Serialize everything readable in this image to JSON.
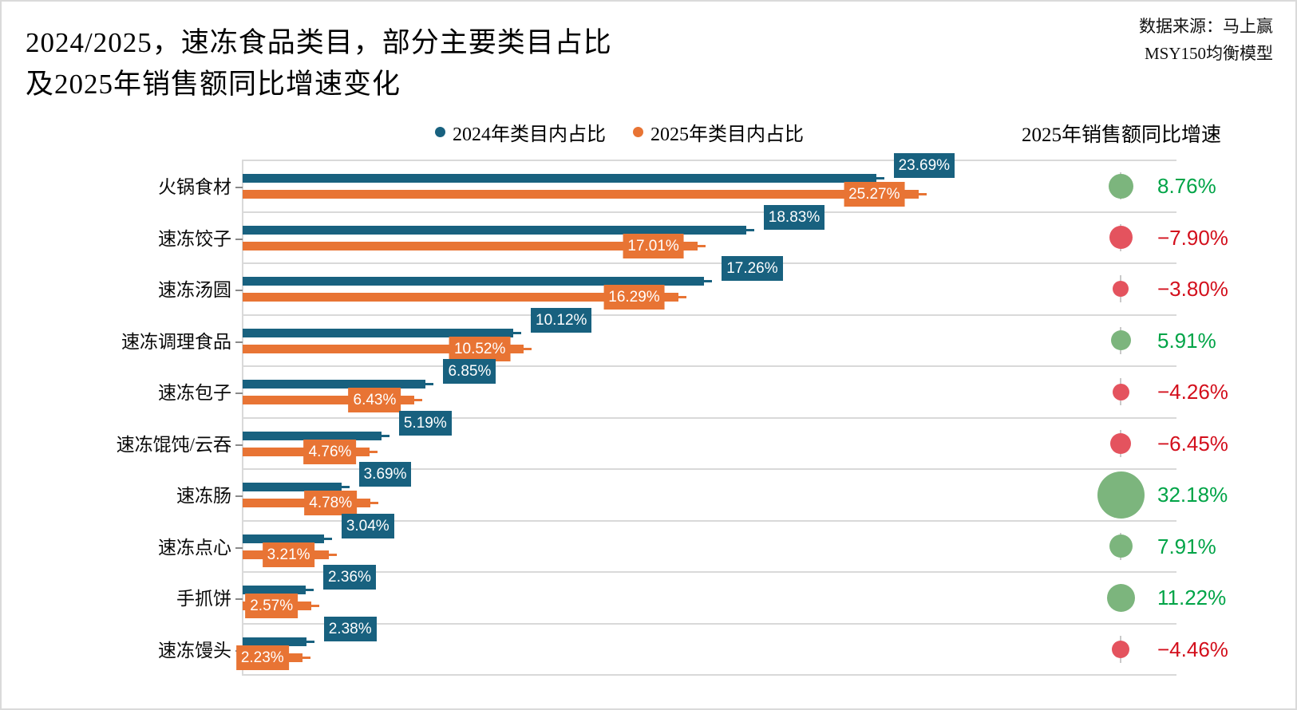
{
  "page": {
    "title_line1": "2024/2025，速冻食品类目，部分主要类目占比",
    "title_line2": "及2025年销售额同比增速变化",
    "source_line1": "数据来源：马上赢",
    "source_line2": "MSY150均衡模型"
  },
  "legend": {
    "series_2024_label": "2024年类目内占比",
    "series_2025_label": "2025年类目内占比"
  },
  "growth_header": "2025年销售额同比增速",
  "colors": {
    "blue_2024": "#18617F",
    "orange_2025": "#E87434",
    "bubble_green": "#7CB57D",
    "bubble_red": "#E4535E",
    "text_green": "#00A447",
    "text_red": "#D30F1C",
    "gridline": "#D9D9D9"
  },
  "chart_data": {
    "type": "bar",
    "orientation": "horizontal",
    "title": "2024/2025，速冻食品类目，部分主要类目占比及2025年销售额同比增速变化",
    "xlabel": "",
    "ylabel": "",
    "xlim": [
      0,
      29.5
    ],
    "grid": "row-separators",
    "legend_position": "top-center",
    "categories": [
      "火锅食材",
      "速冻饺子",
      "速冻汤圆",
      "速冻调理食品",
      "速冻包子",
      "速冻馄饨/云吞",
      "速冻肠",
      "速冻点心",
      "手抓饼",
      "速冻馒头"
    ],
    "series": [
      {
        "name": "2024年类目内占比",
        "values": [
          23.69,
          18.83,
          17.26,
          10.12,
          6.85,
          5.19,
          3.69,
          3.04,
          2.36,
          2.38
        ],
        "labels": [
          "23.69%",
          "18.83%",
          "17.26%",
          "10.12%",
          "6.85%",
          "5.19%",
          "3.69%",
          "3.04%",
          "2.36%",
          "2.38%"
        ]
      },
      {
        "name": "2025年类目内占比",
        "values": [
          25.27,
          17.01,
          16.29,
          10.52,
          6.43,
          4.76,
          4.78,
          3.21,
          2.57,
          2.23
        ],
        "labels": [
          "25.27%",
          "17.01%",
          "16.29%",
          "10.52%",
          "6.43%",
          "4.76%",
          "4.78%",
          "3.21%",
          "2.57%",
          "2.23%"
        ]
      }
    ],
    "growth_bubbles": {
      "name": "2025年销售额同比增速",
      "values": [
        8.76,
        -7.9,
        -3.8,
        5.91,
        -4.26,
        -6.45,
        32.18,
        7.91,
        11.22,
        -4.46
      ],
      "labels": [
        "8.76%",
        "−7.90%",
        "−3.80%",
        "5.91%",
        "−4.26%",
        "−6.45%",
        "32.18%",
        "7.91%",
        "11.22%",
        "−4.46%"
      ]
    }
  }
}
